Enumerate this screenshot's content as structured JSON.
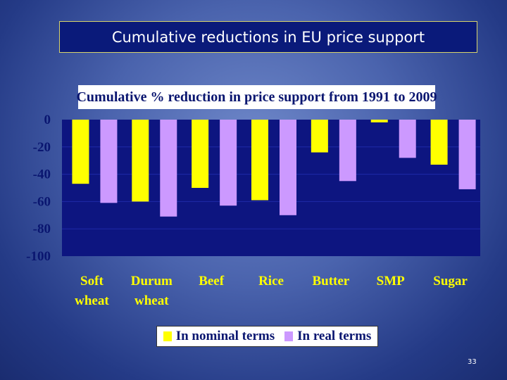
{
  "slide": {
    "title": "Cumulative reductions in EU price support",
    "page_number": "33"
  },
  "colors": {
    "plot_background": "#0d1580",
    "nominal": "#ffff00",
    "real": "#cc99ff",
    "tick_text": "#0a1670",
    "gridline": "#1f2aa8"
  },
  "chart_data": {
    "type": "bar",
    "title": "Cumulative % reduction in price support from 1991 to 2009",
    "categories": [
      [
        "Soft",
        "wheat"
      ],
      [
        "Durum",
        "wheat"
      ],
      [
        "Beef"
      ],
      [
        "Rice"
      ],
      [
        "Butter"
      ],
      [
        "SMP"
      ],
      [
        "Sugar"
      ]
    ],
    "series": [
      {
        "name": "In nominal terms",
        "values": [
          -47,
          -60,
          -50,
          -59,
          -24,
          -2,
          -33
        ]
      },
      {
        "name": "In real terms",
        "values": [
          -61,
          -71,
          -63,
          -70,
          -45,
          -28,
          -51
        ]
      }
    ],
    "ylim": [
      -100,
      0
    ],
    "yticks": [
      0,
      -20,
      -40,
      -60,
      -80,
      -100
    ],
    "xlabel": "",
    "ylabel": "",
    "legend_position": "bottom",
    "grid": true
  }
}
